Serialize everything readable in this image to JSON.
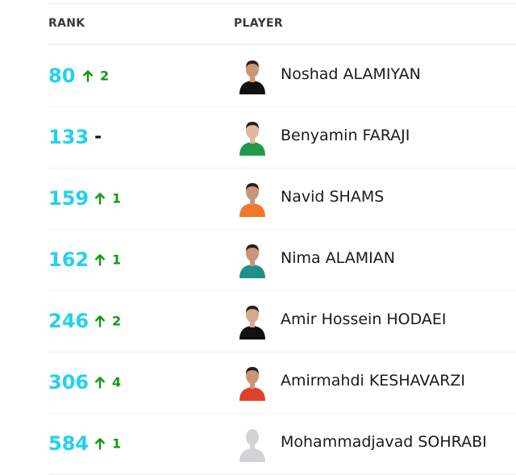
{
  "columns": {
    "rank": "RANK",
    "player": "PLAYER"
  },
  "colors": {
    "rank": "#22d1f0",
    "up": "#109a10"
  },
  "rows": [
    {
      "rank": "80",
      "change": "2",
      "direction": "up",
      "name": "Noshad ALAMIYAN",
      "shirt": "#111111",
      "skin": "#c9967a"
    },
    {
      "rank": "133",
      "change": "-",
      "direction": "none",
      "name": "Benyamin FARAJI",
      "shirt": "#1e9a4a",
      "skin": "#e0b8a0"
    },
    {
      "rank": "159",
      "change": "1",
      "direction": "up",
      "name": "Navid SHAMS",
      "shirt": "#f07a2a",
      "skin": "#c9967a"
    },
    {
      "rank": "162",
      "change": "1",
      "direction": "up",
      "name": "Nima ALAMIAN",
      "shirt": "#1f8f8a",
      "skin": "#c9967a"
    },
    {
      "rank": "246",
      "change": "2",
      "direction": "up",
      "name": "Amir Hossein HODAEI",
      "shirt": "#111111",
      "skin": "#d8a88a"
    },
    {
      "rank": "306",
      "change": "4",
      "direction": "up",
      "name": "Amirmahdi KESHAVARZI",
      "shirt": "#e0402a",
      "skin": "#c9967a"
    },
    {
      "rank": "584",
      "change": "1",
      "direction": "up",
      "name": "Mohammadjavad SOHRABI",
      "shirt": "#d3d3d6",
      "skin": "#d3d3d6",
      "placeholder": true
    }
  ]
}
